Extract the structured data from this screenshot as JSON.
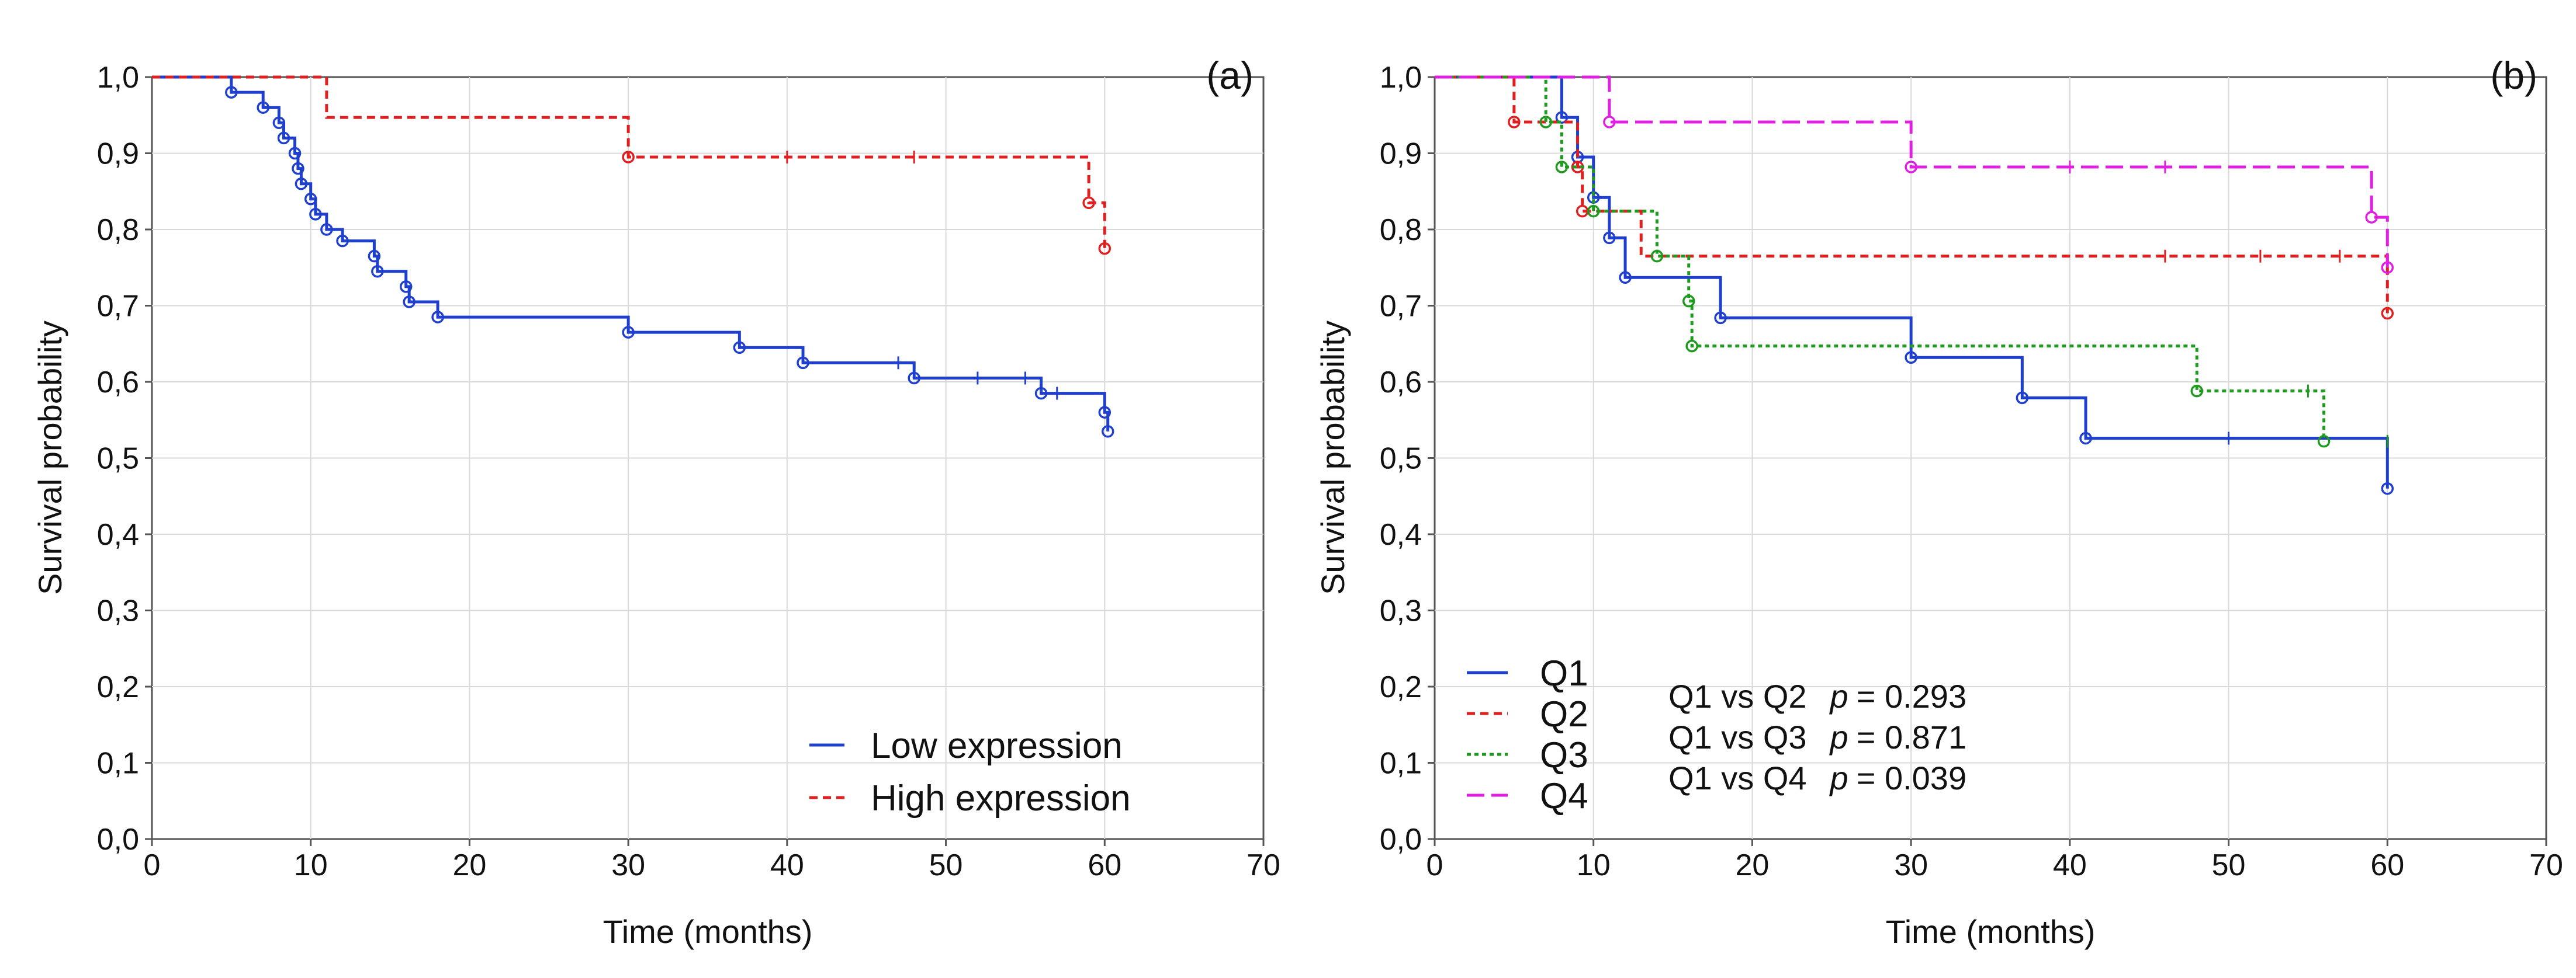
{
  "chart_data": [
    {
      "type": "line",
      "subtype": "kaplan-meier",
      "panel_label": "(a)",
      "xlabel": "Time (months)",
      "ylabel": "Survival probability",
      "xlim": [
        0,
        70
      ],
      "ylim": [
        0,
        1
      ],
      "xticks": [
        "0",
        "10",
        "20",
        "30",
        "40",
        "50",
        "60",
        "70"
      ],
      "yticks": [
        "0,0",
        "0,1",
        "0,2",
        "0,3",
        "0,4",
        "0,5",
        "0,6",
        "0,7",
        "0,8",
        "0,9",
        "1,0"
      ],
      "grid": true,
      "legend_position": "bottom-right",
      "series": [
        {
          "name": "Low expression",
          "color": "#1f3fcf",
          "dash": "solid",
          "steps": [
            [
              0,
              1.0
            ],
            [
              5,
              0.98
            ],
            [
              7,
              0.96
            ],
            [
              8,
              0.94
            ],
            [
              8.3,
              0.92
            ],
            [
              9,
              0.9
            ],
            [
              9.2,
              0.88
            ],
            [
              9.4,
              0.86
            ],
            [
              10,
              0.84
            ],
            [
              10.3,
              0.82
            ],
            [
              11,
              0.8
            ],
            [
              12,
              0.785
            ],
            [
              14,
              0.765
            ],
            [
              14.2,
              0.745
            ],
            [
              16,
              0.725
            ],
            [
              16.2,
              0.705
            ],
            [
              18,
              0.685
            ],
            [
              30,
              0.665
            ],
            [
              37,
              0.645
            ],
            [
              41,
              0.625
            ],
            [
              48,
              0.605
            ],
            [
              56,
              0.585
            ],
            [
              60,
              0.56
            ],
            [
              60.2,
              0.535
            ]
          ],
          "events": [
            [
              5,
              0.98
            ],
            [
              7,
              0.96
            ],
            [
              8,
              0.94
            ],
            [
              8.3,
              0.92
            ],
            [
              9,
              0.9
            ],
            [
              9.2,
              0.88
            ],
            [
              9.4,
              0.86
            ],
            [
              10,
              0.84
            ],
            [
              10.3,
              0.82
            ],
            [
              11,
              0.8
            ],
            [
              12,
              0.785
            ],
            [
              14,
              0.765
            ],
            [
              14.2,
              0.745
            ],
            [
              16,
              0.725
            ],
            [
              16.2,
              0.705
            ],
            [
              18,
              0.685
            ],
            [
              30,
              0.665
            ],
            [
              37,
              0.645
            ],
            [
              41,
              0.625
            ],
            [
              48,
              0.605
            ],
            [
              56,
              0.585
            ],
            [
              60,
              0.56
            ],
            [
              60.2,
              0.535
            ]
          ],
          "censored": [
            [
              47,
              0.625
            ],
            [
              52,
              0.605
            ],
            [
              55,
              0.605
            ],
            [
              57,
              0.585
            ]
          ]
        },
        {
          "name": "High expression",
          "color": "#e02020",
          "dash": "dashed",
          "steps": [
            [
              0,
              1.0
            ],
            [
              11,
              0.947
            ],
            [
              30,
              0.895
            ],
            [
              59,
              0.835
            ],
            [
              60,
              0.775
            ]
          ],
          "events": [
            [
              30,
              0.895
            ],
            [
              59,
              0.835
            ],
            [
              60,
              0.775
            ]
          ],
          "censored": [
            [
              40,
              0.895
            ],
            [
              48,
              0.895
            ]
          ]
        }
      ]
    },
    {
      "type": "line",
      "subtype": "kaplan-meier",
      "panel_label": "(b)",
      "xlabel": "Time (months)",
      "ylabel": "Survival probability",
      "xlim": [
        0,
        70
      ],
      "ylim": [
        0,
        1
      ],
      "xticks": [
        "0",
        "10",
        "20",
        "30",
        "40",
        "50",
        "60",
        "70"
      ],
      "yticks": [
        "0,0",
        "0,1",
        "0,2",
        "0,3",
        "0,4",
        "0,5",
        "0,6",
        "0,7",
        "0,8",
        "0,9",
        "1,0"
      ],
      "grid": true,
      "legend_position": "bottom-left",
      "annotations": [
        {
          "comparison": "Q1 vs Q2",
          "p_label": "p",
          "p_value": "= 0.293"
        },
        {
          "comparison": "Q1 vs Q3",
          "p_label": "p",
          "p_value": "= 0.871"
        },
        {
          "comparison": "Q1 vs Q4",
          "p_label": "p",
          "p_value": "= 0.039"
        }
      ],
      "series": [
        {
          "name": "Q1",
          "color": "#1f3fcf",
          "dash": "solid",
          "steps": [
            [
              0,
              1.0
            ],
            [
              8,
              0.947
            ],
            [
              9,
              0.895
            ],
            [
              10,
              0.842
            ],
            [
              11,
              0.789
            ],
            [
              12,
              0.737
            ],
            [
              18,
              0.684
            ],
            [
              30,
              0.632
            ],
            [
              37,
              0.579
            ],
            [
              41,
              0.526
            ],
            [
              60,
              0.46
            ]
          ],
          "events": [
            [
              8,
              0.947
            ],
            [
              9,
              0.895
            ],
            [
              10,
              0.842
            ],
            [
              11,
              0.789
            ],
            [
              12,
              0.737
            ],
            [
              18,
              0.684
            ],
            [
              30,
              0.632
            ],
            [
              37,
              0.579
            ],
            [
              41,
              0.526
            ],
            [
              60,
              0.46
            ]
          ],
          "censored": [
            [
              50,
              0.526
            ]
          ]
        },
        {
          "name": "Q2",
          "color": "#e02020",
          "dash": "dashed",
          "steps": [
            [
              0,
              1.0
            ],
            [
              5,
              0.941
            ],
            [
              9,
              0.882
            ],
            [
              9.3,
              0.824
            ],
            [
              13,
              0.765
            ],
            [
              60,
              0.69
            ]
          ],
          "events": [
            [
              5,
              0.941
            ],
            [
              9,
              0.882
            ],
            [
              9.3,
              0.824
            ],
            [
              60,
              0.69
            ]
          ],
          "censored": [
            [
              46,
              0.765
            ],
            [
              52,
              0.765
            ],
            [
              57,
              0.765
            ]
          ]
        },
        {
          "name": "Q3",
          "color": "#1e9a1e",
          "dash": "dotted",
          "steps": [
            [
              0,
              1.0
            ],
            [
              7,
              0.941
            ],
            [
              8,
              0.882
            ],
            [
              10,
              0.824
            ],
            [
              14,
              0.765
            ],
            [
              16,
              0.706
            ],
            [
              16.2,
              0.647
            ],
            [
              48,
              0.588
            ],
            [
              56,
              0.522
            ]
          ],
          "events": [
            [
              7,
              0.941
            ],
            [
              8,
              0.882
            ],
            [
              10,
              0.824
            ],
            [
              14,
              0.765
            ],
            [
              16,
              0.706
            ],
            [
              16.2,
              0.647
            ],
            [
              48,
              0.588
            ],
            [
              56,
              0.522
            ]
          ],
          "censored": [
            [
              55,
              0.588
            ],
            [
              60,
              0.522
            ]
          ]
        },
        {
          "name": "Q4",
          "color": "#e020e0",
          "dash": "longdash",
          "steps": [
            [
              0,
              1.0
            ],
            [
              11,
              0.941
            ],
            [
              30,
              0.882
            ],
            [
              59,
              0.816
            ],
            [
              60,
              0.75
            ]
          ],
          "events": [
            [
              11,
              0.941
            ],
            [
              30,
              0.882
            ],
            [
              59,
              0.816
            ],
            [
              60,
              0.75
            ]
          ],
          "censored": [
            [
              40,
              0.882
            ],
            [
              46,
              0.882
            ]
          ]
        }
      ]
    }
  ]
}
